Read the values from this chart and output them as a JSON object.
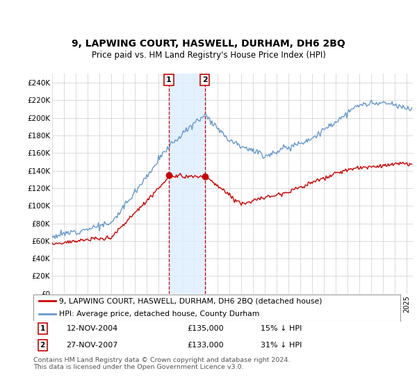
{
  "title": "9, LAPWING COURT, HASWELL, DURHAM, DH6 2BQ",
  "subtitle": "Price paid vs. HM Land Registry's House Price Index (HPI)",
  "ylim": [
    0,
    250000
  ],
  "sale1_x": 2004.876,
  "sale1_price": 135000,
  "sale2_x": 2007.909,
  "sale2_price": 133000,
  "legend_property": "9, LAPWING COURT, HASWELL, DURHAM, DH6 2BQ (detached house)",
  "legend_hpi": "HPI: Average price, detached house, County Durham",
  "sale1_date_str": "12-NOV-2004",
  "sale1_price_str": "£135,000",
  "sale1_pct_str": "15% ↓ HPI",
  "sale2_date_str": "27-NOV-2007",
  "sale2_price_str": "£133,000",
  "sale2_pct_str": "31% ↓ HPI",
  "footnote": "Contains HM Land Registry data © Crown copyright and database right 2024.\nThis data is licensed under the Open Government Licence v3.0.",
  "property_color": "#cc0000",
  "hpi_color": "#6699cc",
  "shade_color": "#ddeeff",
  "vline_color": "#cc0000",
  "box_color": "#cc0000",
  "background_color": "#ffffff",
  "grid_color": "#cccccc",
  "ytick_vals": [
    0,
    20000,
    40000,
    60000,
    80000,
    100000,
    120000,
    140000,
    160000,
    180000,
    200000,
    220000,
    240000
  ],
  "ytick_labels": [
    "£0",
    "£20K",
    "£40K",
    "£60K",
    "£80K",
    "£100K",
    "£120K",
    "£140K",
    "£160K",
    "£180K",
    "£200K",
    "£220K",
    "£240K"
  ],
  "xmin": 1995,
  "xmax": 2025.5
}
